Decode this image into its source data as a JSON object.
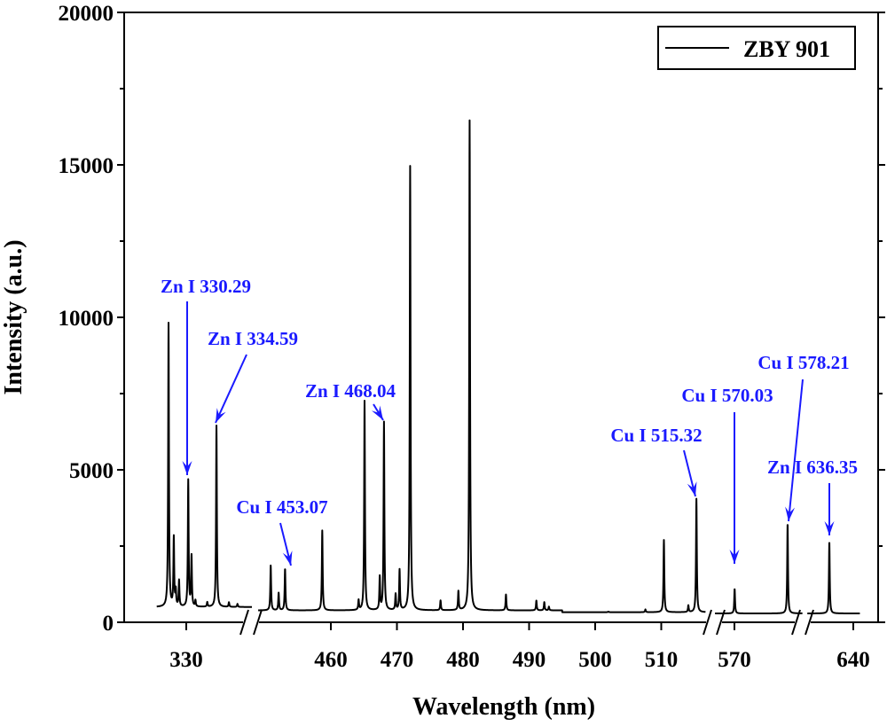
{
  "chart_data": {
    "type": "line",
    "title": "",
    "xlabel": "Wavelength (nm)",
    "ylabel": "Intensity (a.u.)",
    "ylim": [
      0,
      20000
    ],
    "yticks": [
      "0",
      "5000",
      "10000",
      "15000",
      "20000"
    ],
    "ytick_values": [
      0,
      5000,
      10000,
      15000,
      20000
    ],
    "xticks": [
      {
        "value": 330,
        "label": "330"
      },
      {
        "value": 460,
        "label": "460"
      },
      {
        "value": 470,
        "label": "470"
      },
      {
        "value": 480,
        "label": "480"
      },
      {
        "value": 490,
        "label": "490"
      },
      {
        "value": 500,
        "label": "500"
      },
      {
        "value": 510,
        "label": "510"
      },
      {
        "value": 570,
        "label": "570"
      },
      {
        "value": 640,
        "label": "640"
      }
    ],
    "x_segments": [
      {
        "range": [
          325.5,
          340.0
        ],
        "baseline": 500
      },
      {
        "range": [
          449.0,
          516.7
        ],
        "baseline": 330
      },
      {
        "range": [
          567.0,
          580.5
        ],
        "baseline": 290
      },
      {
        "range": [
          633.0,
          641.0
        ],
        "baseline": 290
      }
    ],
    "legend": {
      "position": "top-right",
      "entries": [
        "ZBY 901"
      ]
    },
    "series": [
      {
        "name": "ZBY 901",
        "color": "#000000",
        "peaks": [
          [
            327.3,
            9800
          ],
          [
            328.1,
            2750
          ],
          [
            328.4,
            1000
          ],
          [
            328.9,
            1350
          ],
          [
            330.3,
            4650
          ],
          [
            330.8,
            2150
          ],
          [
            331.4,
            700
          ],
          [
            333.2,
            650
          ],
          [
            334.6,
            6450
          ],
          [
            336.5,
            650
          ],
          [
            337.8,
            600
          ],
          [
            450.9,
            1800
          ],
          [
            452.1,
            900
          ],
          [
            453.07,
            1700
          ],
          [
            458.7,
            2950
          ],
          [
            464.2,
            650
          ],
          [
            465.1,
            7200
          ],
          [
            467.4,
            1400
          ],
          [
            468.04,
            6500
          ],
          [
            469.8,
            850
          ],
          [
            470.4,
            1650
          ],
          [
            472.0,
            14900
          ],
          [
            476.6,
            650
          ],
          [
            479.3,
            950
          ],
          [
            481.0,
            16400
          ],
          [
            486.5,
            850
          ],
          [
            491.1,
            650
          ],
          [
            492.3,
            600
          ],
          [
            493.0,
            450
          ],
          [
            502.0,
            350
          ],
          [
            503.6,
            330
          ],
          [
            507.6,
            420
          ],
          [
            510.4,
            2700
          ],
          [
            514.1,
            550
          ],
          [
            515.32,
            4050
          ],
          [
            570.03,
            1100
          ],
          [
            578.21,
            3250
          ],
          [
            636.35,
            2650
          ]
        ]
      }
    ],
    "annotations": [
      {
        "text": "Zn I 330.29",
        "wavelength": 330.29,
        "intensity": 4650
      },
      {
        "text": "Zn I 334.59",
        "wavelength": 334.59,
        "intensity": 6450
      },
      {
        "text": "Zn I 468.04",
        "wavelength": 468.04,
        "intensity": 6500
      },
      {
        "text": "Cu I 453.07",
        "wavelength": 453.07,
        "intensity": 1700
      },
      {
        "text": "Cu I 515.32",
        "wavelength": 515.32,
        "intensity": 4050
      },
      {
        "text": "Cu I 570.03",
        "wavelength": 570.03,
        "intensity": 1100
      },
      {
        "text": "Cu I 578.21",
        "wavelength": 578.21,
        "intensity": 3250
      },
      {
        "text": "Zn I 636.35",
        "wavelength": 636.35,
        "intensity": 2650
      }
    ],
    "annotation_color": "#1a1aff"
  }
}
